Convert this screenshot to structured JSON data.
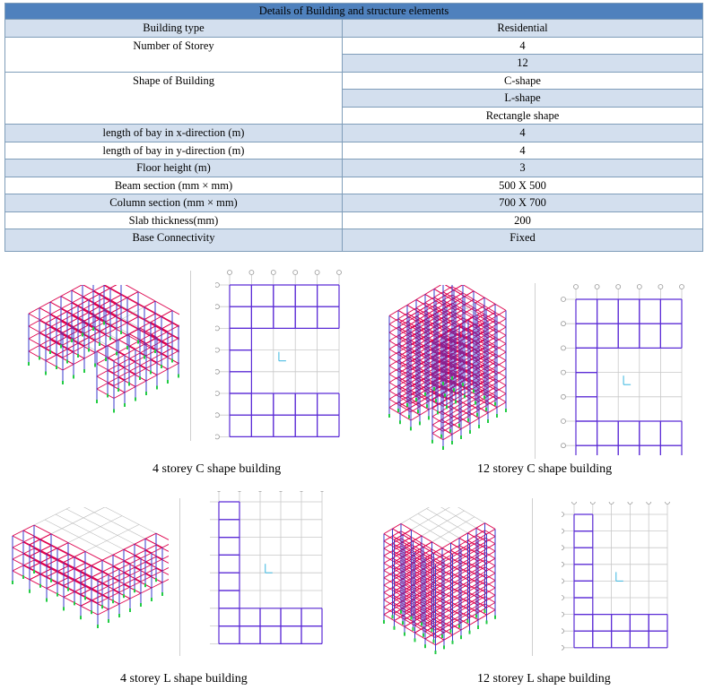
{
  "table": {
    "title": "Details of Building and structure elements",
    "rows": [
      {
        "label": "Building type",
        "value": "Residential"
      },
      {
        "label": "Number of Storey",
        "values": [
          "4",
          "12"
        ]
      },
      {
        "label": "Shape of Building",
        "values": [
          "C-shape",
          "L-shape",
          "Rectangle shape"
        ]
      },
      {
        "label": "length of bay in x-direction (m)",
        "value": "4"
      },
      {
        "label": "length of bay in y-direction (m)",
        "value": "4"
      },
      {
        "label": "Floor height (m)",
        "value": "3"
      },
      {
        "label": "Beam section (mm × mm)",
        "value": "500 X 500"
      },
      {
        "label": "Column section (mm × mm)",
        "value": "700 X 700"
      },
      {
        "label": "Slab thickness(mm)",
        "value": "200"
      },
      {
        "label": "Base Connectivity",
        "value": "Fixed"
      }
    ]
  },
  "figures": [
    {
      "caption": "4 storey C shape building",
      "storeys": 4,
      "shape": "C"
    },
    {
      "caption": "12 storey C shape building",
      "storeys": 12,
      "shape": "C"
    },
    {
      "caption": "4 storey L shape building",
      "storeys": 4,
      "shape": "L"
    },
    {
      "caption": "12 storey L shape building",
      "storeys": 12,
      "shape": "L"
    }
  ],
  "colors": {
    "header": "#4f81bd",
    "band": "#d3dfee",
    "column": "#3a3acc",
    "beam": "#e0004d",
    "plan": "#5b2bd6",
    "grid": "#c8c8c8",
    "support": "#22cc44"
  }
}
